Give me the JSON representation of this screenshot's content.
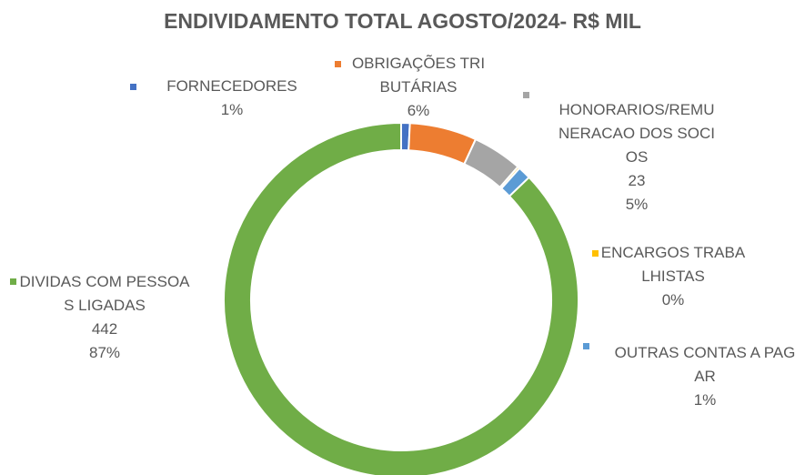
{
  "chart_data": {
    "type": "donut",
    "title": "ENDIVIDAMENTO TOTAL AGOSTO/2024- R$ MIL",
    "categories": [
      "FORNECEDORES",
      "OBRIGAÇÕES TRIBUTÁRIAS",
      "HONORARIOS/REMUNERACAO DOS SOCIOS",
      "ENCARGOS TRABALHISTAS",
      "OUTRAS CONTAS A PAGAR",
      "DIVIDAS COM PESSOAS LIGADAS"
    ],
    "values": [
      4,
      31,
      23,
      1,
      6,
      442
    ],
    "percent_labels": [
      "1%",
      "6%",
      "5%",
      "0%",
      "1%",
      "87%"
    ],
    "colors": [
      "#4472c4",
      "#ed7d31",
      "#a5a5a5",
      "#ffc000",
      "#5b9bd5",
      "#70ad47"
    ]
  }
}
